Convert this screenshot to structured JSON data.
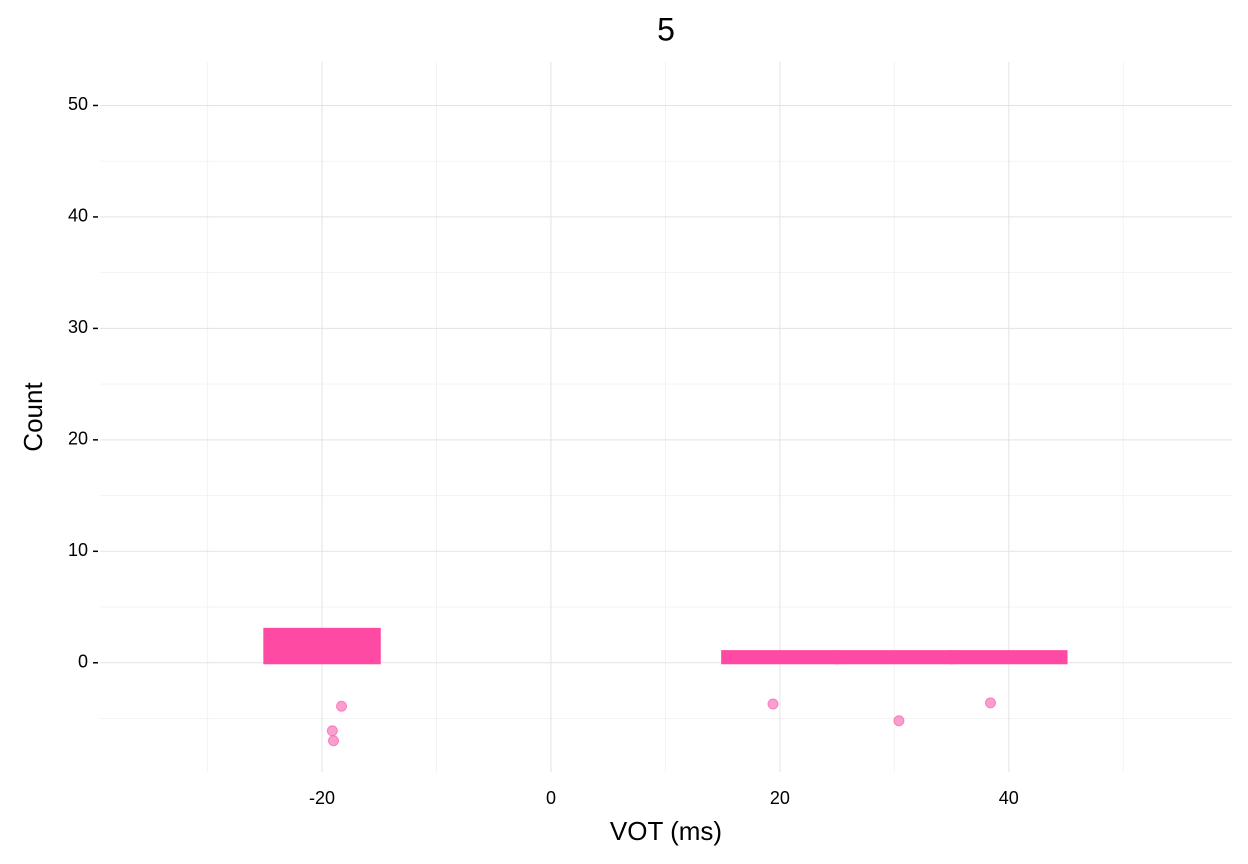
{
  "chart_data": {
    "type": "histogram",
    "title": "5",
    "x_label": "VOT (ms)",
    "y_label": "Count",
    "bins": [
      -35,
      -25,
      -15,
      -5,
      5,
      15,
      25,
      35,
      45,
      55
    ],
    "values": [
      0,
      3,
      0,
      0,
      0,
      1,
      1,
      1,
      0
    ],
    "color": "#ff4aa3",
    "points": {
      "x": [
        -18.3,
        -19.1,
        -19.0,
        19.4,
        30.4,
        38.4
      ],
      "y": [
        -3.9,
        -6.1,
        -7.0,
        -3.7,
        -5.2,
        -3.6
      ],
      "color": "#f77fbf"
    },
    "xlim": [
      -39.4,
      59.5
    ],
    "ylim": [
      -9.8,
      53.9
    ],
    "xticks": [
      -20,
      0,
      20,
      40
    ],
    "yticks": [
      0,
      10,
      20,
      30,
      40,
      50
    ],
    "x_minor_ticks": [
      -30,
      -10,
      10,
      30,
      50
    ],
    "y_minor_ticks": [
      -5,
      5,
      15,
      25,
      35,
      45
    ],
    "grid": true
  }
}
